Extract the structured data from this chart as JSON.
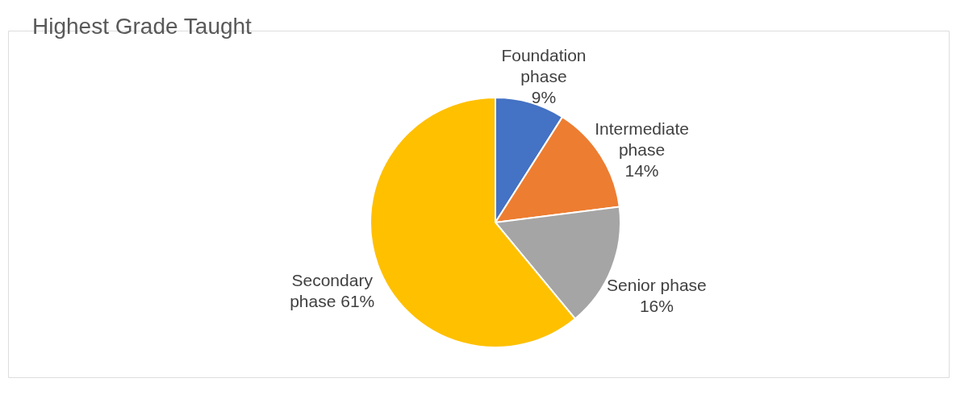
{
  "chart_data": {
    "type": "pie",
    "title": "Highest Grade Taught",
    "categories": [
      "Foundation phase",
      "Intermediate phase",
      "Senior phase",
      "Secondary phase"
    ],
    "values": [
      9,
      14,
      16,
      61
    ],
    "colors": [
      "#4472c4",
      "#ed7d31",
      "#a5a5a5",
      "#ffc000"
    ],
    "value_labels": [
      "9%",
      "14%",
      "16%",
      "61%"
    ]
  }
}
